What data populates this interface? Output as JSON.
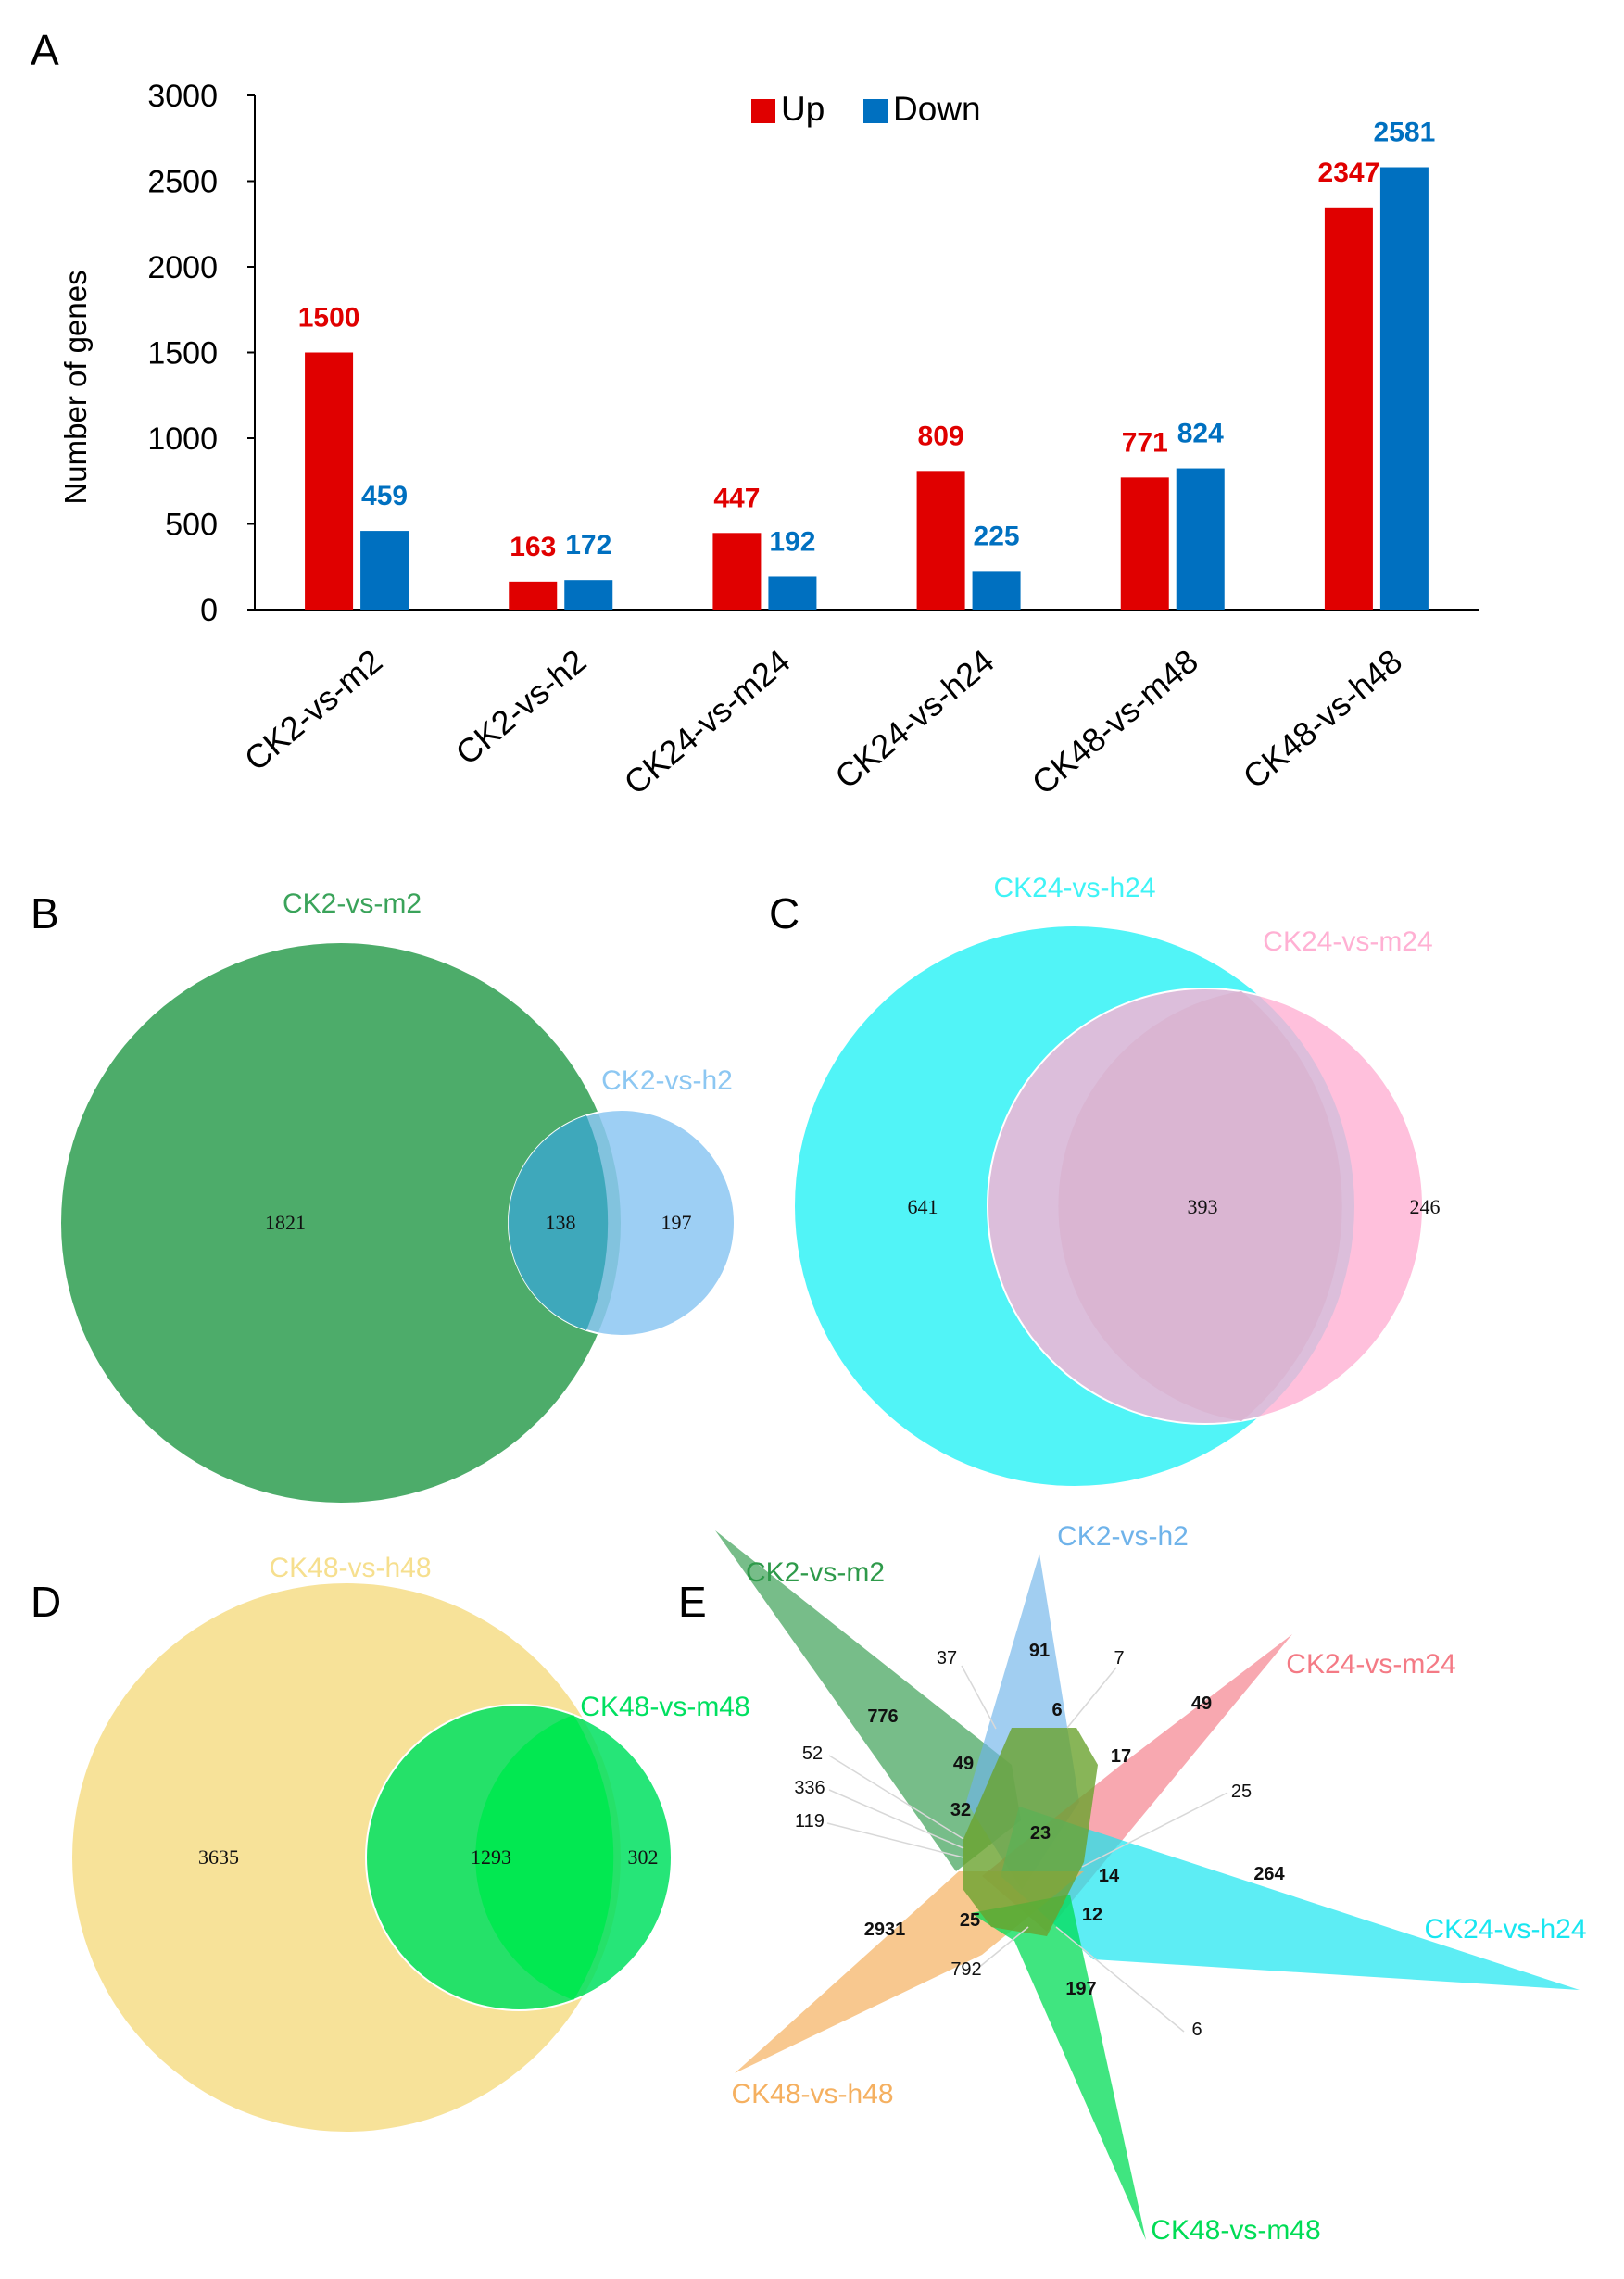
{
  "panels": {
    "a": "A",
    "b": "B",
    "c": "C",
    "d": "D",
    "e": "E"
  },
  "chart_data": [
    {
      "type": "bar",
      "panel": "A",
      "ylabel": "Number of genes",
      "ylim": [
        0,
        3000
      ],
      "yticks": [
        0,
        500,
        1000,
        1500,
        2000,
        2500,
        3000
      ],
      "categories": [
        "CK2-vs-m2",
        "CK2-vs-h2",
        "CK24-vs-m24",
        "CK24-vs-h24",
        "CK48-vs-m48",
        "CK48-vs-h48"
      ],
      "series": [
        {
          "name": "Up",
          "color": "#e00000",
          "values": [
            1500,
            163,
            447,
            809,
            771,
            2347
          ]
        },
        {
          "name": "Down",
          "color": "#0070c0",
          "values": [
            459,
            172,
            192,
            225,
            824,
            2581
          ]
        }
      ],
      "legend_position": "top-center",
      "grid": false
    }
  ],
  "venn_b": {
    "sets": [
      {
        "name": "CK2-vs-m2",
        "color": "#3aa35a"
      },
      {
        "name": "CK2-vs-h2",
        "color": "#8cc7f2"
      }
    ],
    "regions": {
      "only_a": "1821",
      "both": "138",
      "only_b": "197"
    }
  },
  "venn_c": {
    "sets": [
      {
        "name": "CK24-vs-h24",
        "color": "#3ef3f6"
      },
      {
        "name": "CK24-vs-m24",
        "color": "#ffb0d3"
      }
    ],
    "regions": {
      "only_a": "641",
      "both": "393",
      "only_b": "246"
    }
  },
  "venn_d": {
    "sets": [
      {
        "name": "CK48-vs-h48",
        "color": "#f6df8e"
      },
      {
        "name": "CK48-vs-m48",
        "color": "#00e060"
      }
    ],
    "regions": {
      "only_a": "3635",
      "both": "1293",
      "only_b": "302"
    }
  },
  "venn_e": {
    "sets": [
      {
        "name": "CK2-vs-m2",
        "color": "#2e9a4a"
      },
      {
        "name": "CK2-vs-h2",
        "color": "#6fb3ea"
      },
      {
        "name": "CK24-vs-m24",
        "color": "#f47a85"
      },
      {
        "name": "CK24-vs-h24",
        "color": "#18e6f0"
      },
      {
        "name": "CK48-vs-h48",
        "color": "#f5b060"
      },
      {
        "name": "CK48-vs-m48",
        "color": "#00dc55"
      }
    ],
    "numbers": [
      "776",
      "91",
      "49",
      "264",
      "2931",
      "197",
      "37",
      "7",
      "6",
      "49",
      "17",
      "32",
      "23",
      "14",
      "12",
      "25",
      "25",
      "52",
      "336",
      "119",
      "792",
      "6"
    ]
  }
}
